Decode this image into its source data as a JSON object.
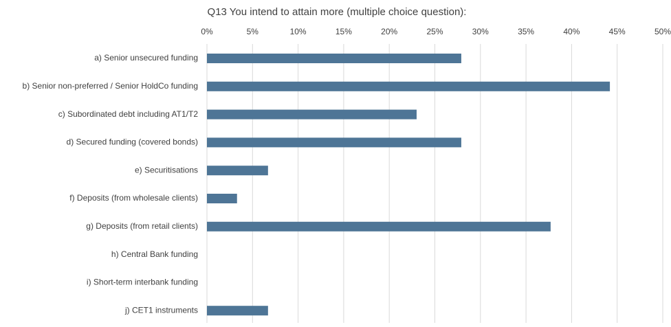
{
  "chart_data": {
    "type": "barh",
    "title": "Q13 You intend to attain more (multiple choice question):",
    "categories": [
      "a) Senior unsecured funding",
      "b) Senior non-preferred / Senior HoldCo funding",
      "c) Subordinated debt including AT1/T2",
      "d) Secured funding (covered bonds)",
      "e) Securitisations",
      "f) Deposits (from wholesale clients)",
      "g) Deposits (from retail clients)",
      "h) Central Bank funding",
      "i) Short-term interbank funding",
      "j) CET1 instruments"
    ],
    "values": [
      27.9,
      44.2,
      23.0,
      27.9,
      6.7,
      3.3,
      37.7,
      0,
      0,
      6.7
    ],
    "color": "#4e7596",
    "xlim": [
      0,
      50
    ],
    "xticks": [
      {
        "value": 0,
        "label": "0%"
      },
      {
        "value": 5,
        "label": "5%"
      },
      {
        "value": 10,
        "label": "10%"
      },
      {
        "value": 15,
        "label": "15%"
      },
      {
        "value": 20,
        "label": "20%"
      },
      {
        "value": 25,
        "label": "25%"
      },
      {
        "value": 30,
        "label": "30%"
      },
      {
        "value": 35,
        "label": "35%"
      },
      {
        "value": 40,
        "label": "40%"
      },
      {
        "value": 45,
        "label": "45%"
      },
      {
        "value": 50,
        "label": "50%"
      }
    ],
    "grid": true
  }
}
